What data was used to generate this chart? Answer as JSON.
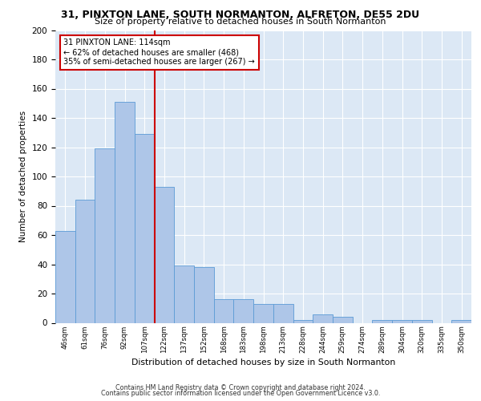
{
  "title_line1": "31, PINXTON LANE, SOUTH NORMANTON, ALFRETON, DE55 2DU",
  "title_line2": "Size of property relative to detached houses in South Normanton",
  "xlabel": "Distribution of detached houses by size in South Normanton",
  "ylabel": "Number of detached properties",
  "categories": [
    "46sqm",
    "61sqm",
    "76sqm",
    "92sqm",
    "107sqm",
    "122sqm",
    "137sqm",
    "152sqm",
    "168sqm",
    "183sqm",
    "198sqm",
    "213sqm",
    "228sqm",
    "244sqm",
    "259sqm",
    "274sqm",
    "289sqm",
    "304sqm",
    "320sqm",
    "335sqm",
    "350sqm"
  ],
  "values": [
    63,
    84,
    119,
    151,
    129,
    93,
    39,
    38,
    16,
    16,
    13,
    13,
    2,
    6,
    4,
    0,
    2,
    2,
    2,
    0,
    2
  ],
  "bar_color": "#aec6e8",
  "bar_edge_color": "#5b9bd5",
  "vline_x": 4.5,
  "vline_label": "31 PINXTON LANE: 114sqm",
  "annotation_line2": "← 62% of detached houses are smaller (468)",
  "annotation_line3": "35% of semi-detached houses are larger (267) →",
  "annotation_box_color": "#ffffff",
  "annotation_box_edge": "#cc0000",
  "vline_color": "#cc0000",
  "ylim": [
    0,
    200
  ],
  "yticks": [
    0,
    20,
    40,
    60,
    80,
    100,
    120,
    140,
    160,
    180,
    200
  ],
  "footer_line1": "Contains HM Land Registry data © Crown copyright and database right 2024.",
  "footer_line2": "Contains public sector information licensed under the Open Government Licence v3.0.",
  "bg_color": "#dce8f5",
  "grid_color": "#ffffff"
}
